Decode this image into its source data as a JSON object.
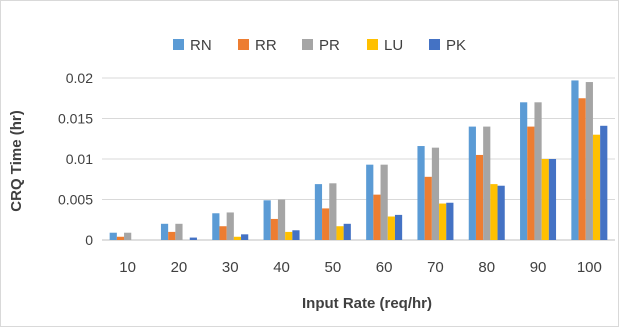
{
  "chart_data": {
    "type": "bar",
    "title": "",
    "xlabel": "Input Rate (req/hr)",
    "ylabel": "CRQ Time (hr)",
    "categories": [
      "10",
      "20",
      "30",
      "40",
      "50",
      "60",
      "70",
      "80",
      "90",
      "100"
    ],
    "ylim": [
      0,
      0.02
    ],
    "yticks": [
      "0",
      "0.005",
      "0.01",
      "0.015",
      "0.02"
    ],
    "grid": true,
    "legend_position": "top",
    "series": [
      {
        "name": "RN",
        "color": "#5b9bd5",
        "values": [
          0.0009,
          0.002,
          0.0033,
          0.0049,
          0.0069,
          0.0093,
          0.0116,
          0.014,
          0.017,
          0.0197
        ]
      },
      {
        "name": "RR",
        "color": "#ed7d31",
        "values": [
          0.0004,
          0.001,
          0.0017,
          0.0026,
          0.0039,
          0.0056,
          0.0078,
          0.0105,
          0.014,
          0.0175
        ]
      },
      {
        "name": "PR",
        "color": "#a5a5a5",
        "values": [
          0.0009,
          0.002,
          0.0034,
          0.005,
          0.007,
          0.0093,
          0.0114,
          0.014,
          0.017,
          0.0195
        ]
      },
      {
        "name": "LU",
        "color": "#ffc000",
        "values": [
          0.0,
          0.0,
          0.0004,
          0.001,
          0.0017,
          0.0029,
          0.0045,
          0.0069,
          0.01,
          0.013
        ]
      },
      {
        "name": "PK",
        "color": "#4472c4",
        "values": [
          0.0,
          0.0003,
          0.0007,
          0.0012,
          0.002,
          0.0031,
          0.0046,
          0.0067,
          0.01,
          0.0141
        ]
      }
    ]
  }
}
